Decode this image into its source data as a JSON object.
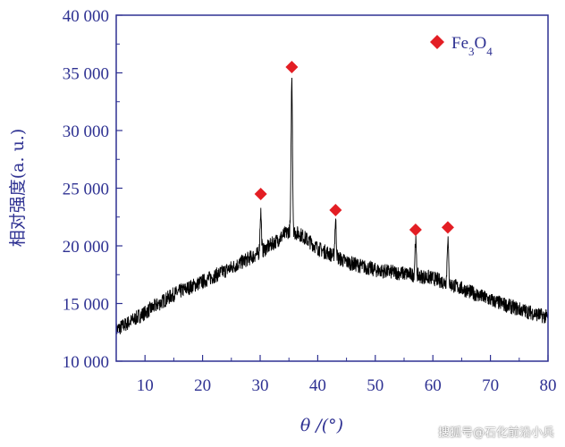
{
  "chart_data": {
    "type": "line",
    "title": "",
    "xlabel": "θ /(°)",
    "ylabel": "相对强度(a. u.)",
    "xlim": [
      5,
      80
    ],
    "ylim": [
      10000,
      40000
    ],
    "x_ticks": [
      10,
      20,
      30,
      40,
      50,
      60,
      70,
      80
    ],
    "y_ticks": [
      10000,
      15000,
      20000,
      25000,
      30000,
      35000,
      40000
    ],
    "x_tick_labels": [
      "10",
      "20",
      "30",
      "40",
      "50",
      "60",
      "70",
      "80"
    ],
    "y_tick_labels": [
      "10 000",
      "15 000",
      "20 000",
      "25 000",
      "30 000",
      "35 000",
      "40 000"
    ],
    "grid": false,
    "legend": {
      "position": "top-right",
      "entries": [
        {
          "label": "Fe3O4",
          "marker": "diamond",
          "color": "#e31e24"
        }
      ]
    },
    "series": [
      {
        "name": "XRD pattern",
        "color": "#000000",
        "baseline": {
          "x": [
            5,
            10,
            15,
            20,
            25,
            28,
            30,
            33,
            35,
            37,
            40,
            45,
            50,
            55,
            60,
            65,
            70,
            75,
            80
          ],
          "y": [
            12700,
            14200,
            15800,
            16900,
            18100,
            18900,
            19400,
            20500,
            21300,
            21000,
            19800,
            18600,
            17900,
            17600,
            17200,
            16300,
            15300,
            14500,
            13800
          ]
        },
        "peaks": [
          {
            "x": 30.1,
            "y": 23000
          },
          {
            "x": 35.5,
            "y": 34500
          },
          {
            "x": 43.1,
            "y": 22200
          },
          {
            "x": 57.0,
            "y": 20500
          },
          {
            "x": 62.6,
            "y": 20700
          }
        ]
      }
    ],
    "markers": {
      "name": "Fe3O4",
      "color": "#e31e24",
      "points": [
        {
          "x": 30.1,
          "y": 24500
        },
        {
          "x": 35.5,
          "y": 35500
        },
        {
          "x": 43.1,
          "y": 23100
        },
        {
          "x": 57.0,
          "y": 21400
        },
        {
          "x": 62.6,
          "y": 21600
        }
      ]
    }
  },
  "watermark": "搜狐号@石化前沿小兵"
}
